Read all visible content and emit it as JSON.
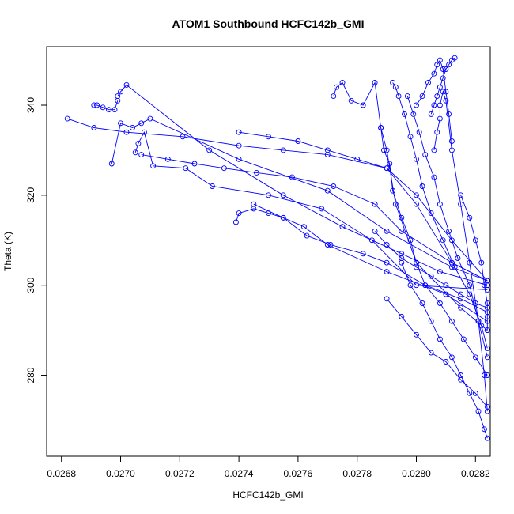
{
  "chart_data": {
    "type": "line",
    "title": "ATOM1 Southbound HCFC142b_GMI",
    "xlabel": "HCFC142b_GMI",
    "ylabel": "Theta (K)",
    "xlim": [
      0.02675,
      0.02825
    ],
    "ylim": [
      262,
      353
    ],
    "x_ticks": [
      0.0268,
      0.027,
      0.0272,
      0.0274,
      0.0276,
      0.0278,
      0.028,
      0.0282
    ],
    "x_tick_labels": [
      "0.0268",
      "0.0270",
      "0.0272",
      "0.0274",
      "0.0276",
      "0.0278",
      "0.0280",
      "0.0282"
    ],
    "y_ticks": [
      280,
      300,
      320,
      340
    ],
    "y_tick_labels": [
      "280",
      "300",
      "320",
      "340"
    ],
    "grid": false,
    "legend": "none",
    "color": "#0000ff",
    "marker": "open-circle",
    "series": [
      {
        "x": [
          0.02682,
          0.02691,
          0.02702,
          0.02721,
          0.0274,
          0.02755,
          0.0277,
          0.0279,
          0.028,
          0.02812,
          0.02824
        ],
        "y": [
          337,
          335,
          334,
          333,
          331,
          330,
          329,
          326,
          318,
          305,
          301
        ]
      },
      {
        "x": [
          0.02691,
          0.02692,
          0.02694,
          0.02696,
          0.02698,
          0.02699
        ],
        "y": [
          340,
          340,
          339.5,
          339,
          339,
          341
        ]
      },
      {
        "x": [
          0.02699,
          0.027,
          0.02702,
          0.0273,
          0.02755,
          0.02775,
          0.02795,
          0.02808,
          0.02824
        ],
        "y": [
          342,
          343,
          344.5,
          330,
          320,
          313,
          307,
          303,
          300
        ]
      },
      {
        "x": [
          0.02697,
          0.027,
          0.02704,
          0.02707,
          0.0271,
          0.0274,
          0.0277,
          0.0279,
          0.02812,
          0.02824
        ],
        "y": [
          327,
          336,
          335,
          336,
          337,
          328,
          321,
          312,
          304,
          301
        ]
      },
      {
        "x": [
          0.02705,
          0.02706,
          0.02708,
          0.02711,
          0.02722,
          0.02731,
          0.0275,
          0.02768,
          0.02785,
          0.028,
          0.02824
        ],
        "y": [
          329.5,
          331.5,
          334,
          326.5,
          326,
          322,
          320,
          317,
          310,
          300,
          299
        ]
      },
      {
        "x": [
          0.02707,
          0.02716,
          0.02725,
          0.02735,
          0.02746,
          0.02758,
          0.02772,
          0.02786,
          0.02795,
          0.02812,
          0.02824
        ],
        "y": [
          329,
          328,
          327,
          326,
          325,
          324,
          322,
          318,
          312,
          305,
          301
        ]
      },
      {
        "x": [
          0.02739,
          0.0274,
          0.02745,
          0.0275,
          0.02755,
          0.02762,
          0.0277,
          0.0279,
          0.0281,
          0.02824
        ],
        "y": [
          314,
          316,
          317,
          316,
          315,
          313,
          309,
          303,
          298,
          292
        ]
      },
      {
        "x": [
          0.0274,
          0.0275,
          0.0276,
          0.0277,
          0.0278,
          0.0279,
          0.028,
          0.02812,
          0.02824
        ],
        "y": [
          334,
          333,
          332,
          330,
          328,
          326,
          320,
          310,
          301
        ]
      },
      {
        "x": [
          0.02745,
          0.02755,
          0.02763,
          0.02771,
          0.02782,
          0.0279,
          0.02803,
          0.02815,
          0.02824
        ],
        "y": [
          318,
          315,
          311,
          309,
          307,
          305,
          300,
          297,
          294
        ]
      },
      {
        "x": [
          0.02772,
          0.02773,
          0.02775,
          0.02778,
          0.02782,
          0.02786,
          0.02788,
          0.0279,
          0.02793,
          0.028,
          0.02815,
          0.02824
        ],
        "y": [
          342,
          344,
          345,
          341,
          340,
          345,
          335,
          330,
          318,
          305,
          295,
          290
        ]
      },
      {
        "x": [
          0.02788,
          0.02789,
          0.02791,
          0.02792,
          0.02795,
          0.02798,
          0.028,
          0.02803,
          0.02808,
          0.02812,
          0.02816,
          0.0282,
          0.02824
        ],
        "y": [
          335,
          330,
          327,
          321,
          315,
          310,
          305,
          300,
          296,
          292,
          288,
          284,
          280
        ]
      },
      {
        "x": [
          0.02792,
          0.02793,
          0.02794,
          0.02796,
          0.02798,
          0.028,
          0.02802,
          0.02805,
          0.02809,
          0.02813,
          0.02818,
          0.02822,
          0.02824
        ],
        "y": [
          345,
          344,
          342,
          338,
          333,
          328,
          322,
          316,
          310,
          304,
          298,
          291,
          286
        ]
      },
      {
        "x": [
          0.02797,
          0.02799,
          0.02801,
          0.02803,
          0.02806,
          0.02808,
          0.02811,
          0.02814,
          0.02818,
          0.02821,
          0.02824
        ],
        "y": [
          342,
          338,
          334,
          329,
          324,
          318,
          312,
          306,
          300,
          292,
          284
        ]
      },
      {
        "x": [
          0.028,
          0.02802,
          0.02804,
          0.02806,
          0.02807,
          0.02808,
          0.02809,
          0.0281,
          0.02811,
          0.02812
        ],
        "y": [
          340,
          342,
          345,
          347,
          349,
          350,
          348,
          343,
          338,
          332
        ]
      },
      {
        "x": [
          0.02805,
          0.02806,
          0.02807,
          0.02808,
          0.02809,
          0.0281,
          0.02811,
          0.02812,
          0.02813
        ],
        "y": [
          338,
          340,
          342,
          344,
          346,
          348,
          349,
          350,
          350.5
        ]
      },
      {
        "x": [
          0.02806,
          0.02807,
          0.02808,
          0.02808,
          0.02809,
          0.0281,
          0.02812,
          0.02815,
          0.02818,
          0.02821,
          0.02823,
          0.02824
        ],
        "y": [
          330,
          334,
          337,
          340,
          343,
          341,
          330,
          318,
          305,
          292,
          280,
          272
        ]
      },
      {
        "x": [
          0.0279,
          0.02795,
          0.028,
          0.02805,
          0.0281,
          0.02815,
          0.0282,
          0.02824
        ],
        "y": [
          297,
          293,
          289,
          285,
          283,
          279,
          276,
          273
        ]
      },
      {
        "x": [
          0.02795,
          0.02798,
          0.02802,
          0.02805,
          0.02808,
          0.02812,
          0.02815,
          0.02818,
          0.02821,
          0.02823,
          0.02824
        ],
        "y": [
          305,
          300,
          296,
          292,
          288,
          284,
          280,
          276,
          272,
          268,
          266
        ]
      },
      {
        "x": [
          0.02786,
          0.0279,
          0.02795,
          0.028,
          0.02805,
          0.0281,
          0.02815,
          0.0282,
          0.02824
        ],
        "y": [
          312,
          309,
          306,
          304,
          302,
          300,
          298,
          296,
          295
        ]
      },
      {
        "x": [
          0.02815,
          0.02818,
          0.0282,
          0.02822,
          0.02823,
          0.02824,
          0.02824,
          0.02824
        ],
        "y": [
          320,
          315,
          310,
          305,
          300,
          296,
          293,
          290
        ]
      }
    ]
  }
}
